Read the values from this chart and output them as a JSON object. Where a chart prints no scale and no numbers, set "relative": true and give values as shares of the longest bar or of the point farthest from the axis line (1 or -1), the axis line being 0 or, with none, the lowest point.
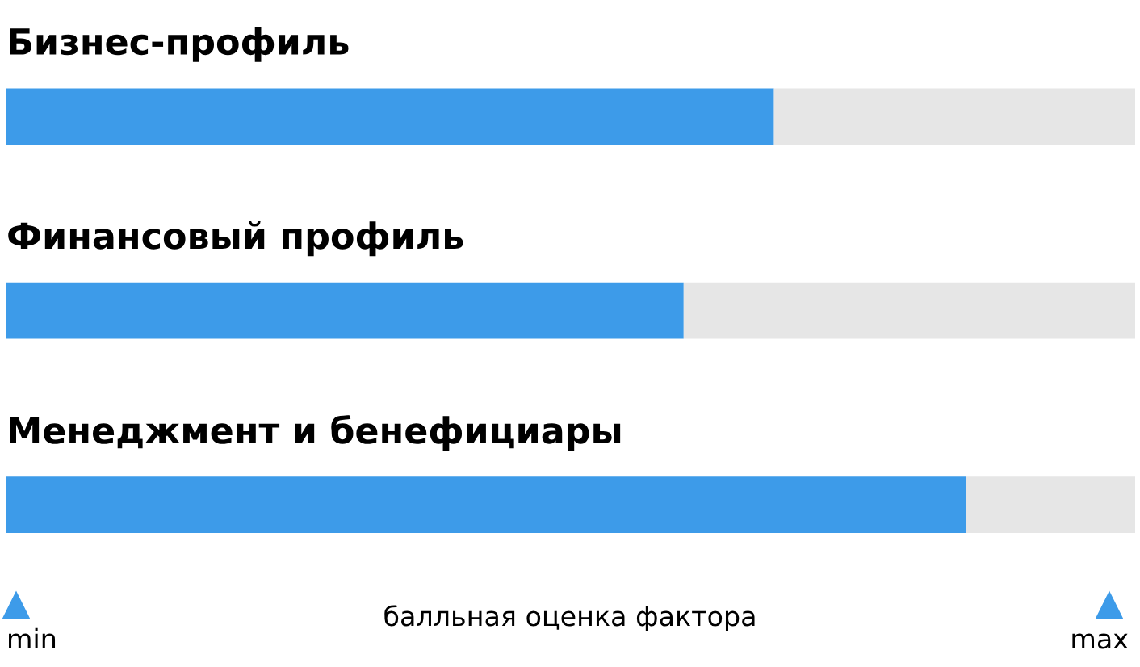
{
  "chart_data": {
    "type": "bar",
    "orientation": "horizontal",
    "stacked": true,
    "relative": true,
    "categories": [
      "Бизнес-профиль",
      "Финансовый профиль",
      "Менеджмент и бенефициары"
    ],
    "series": [
      {
        "color": "#3d9be9",
        "values": [
          0.68,
          0.6,
          0.85
        ]
      },
      {
        "color": "#e6e6e6",
        "values": [
          0.32,
          0.4,
          0.15
        ]
      }
    ],
    "xlabel": "балльная оценка фактора",
    "annotations": [
      "min",
      "max"
    ],
    "legend": false
  }
}
